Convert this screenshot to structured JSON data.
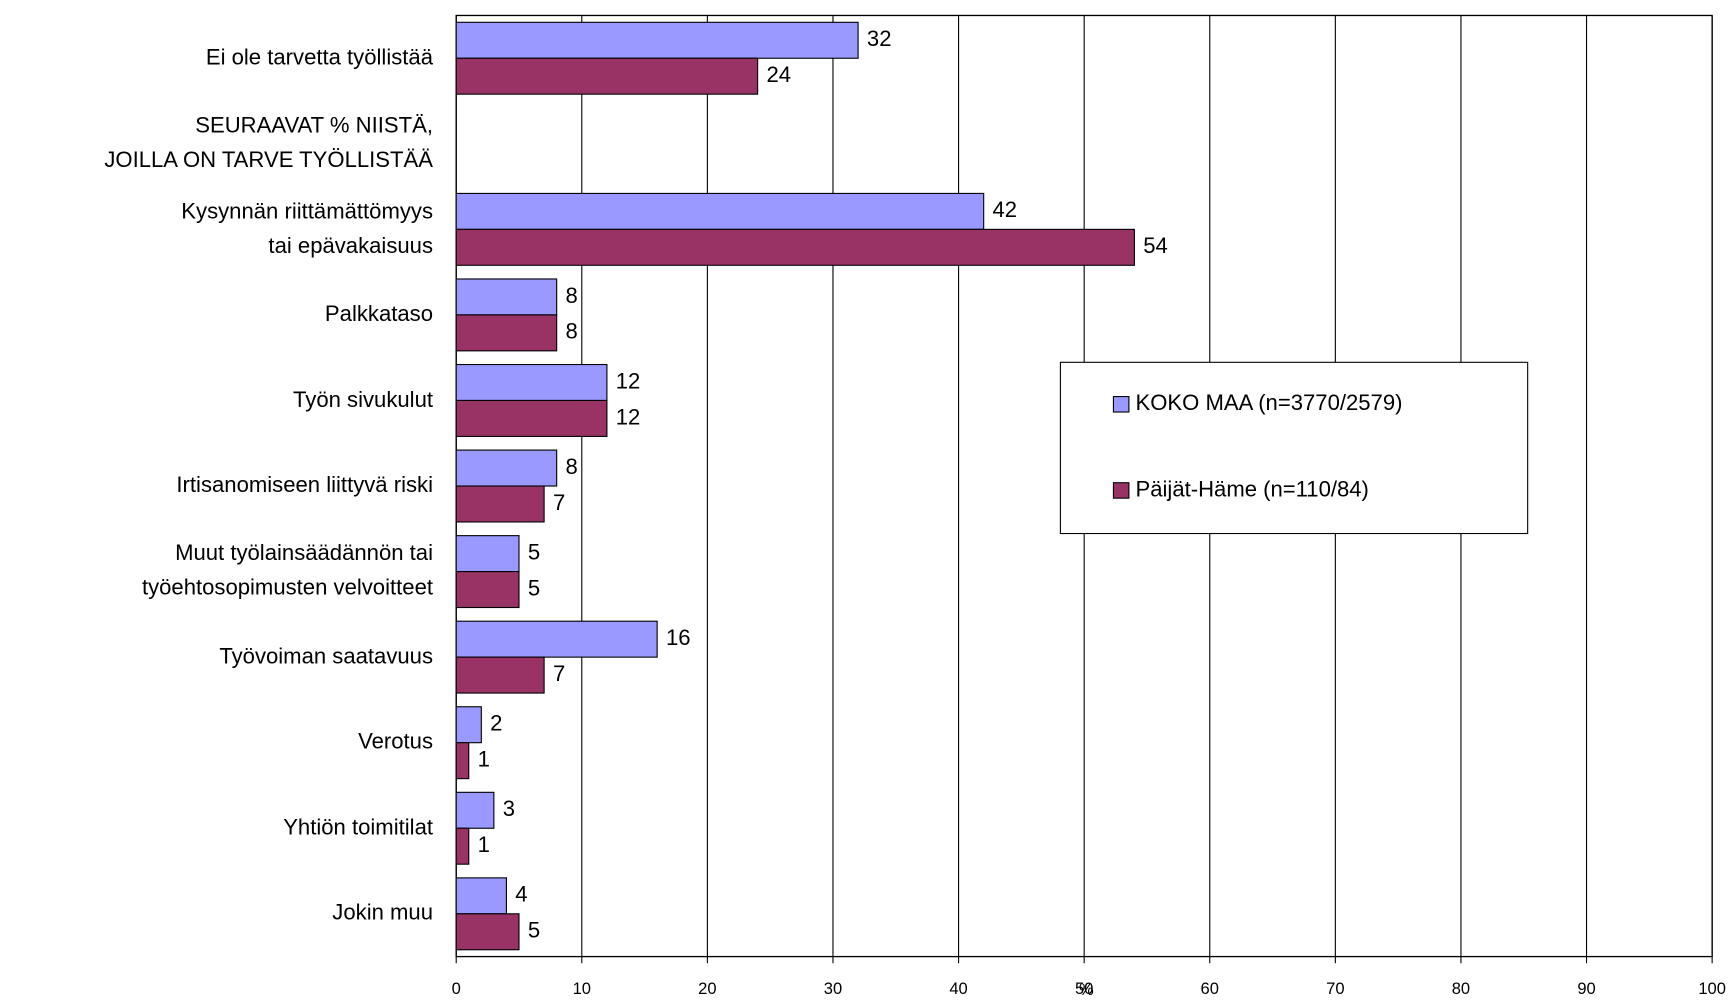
{
  "chart_data": {
    "type": "hbar",
    "categories": [
      "Ei ole tarvetta työllistää",
      "SEURAAVAT % NIISTÄ,\nJOILLA ON TARVE TYÖLLISTÄÄ",
      "Kysynnän riittämättömyys\ntai epävakaisuus",
      "Palkkataso",
      "Työn sivukulut",
      "Irtisanomiseen liittyvä riski",
      "Muut työlainsäädännön tai\ntyöehtosopimusten velvoitteet",
      "Työvoiman saatavuus",
      "Verotus",
      "Yhtiön toimitilat",
      "Jokin muu"
    ],
    "series": [
      {
        "name": "KOKO MAA (n=3770/2579)",
        "color": "#9999ff",
        "values": [
          32,
          null,
          42,
          8,
          12,
          8,
          5,
          16,
          2,
          3,
          4
        ]
      },
      {
        "name": "Päijät-Häme (n=110/84)",
        "color": "#993366",
        "values": [
          24,
          null,
          54,
          8,
          12,
          7,
          5,
          7,
          1,
          1,
          5
        ]
      }
    ],
    "xlabel": "%",
    "xlim": [
      0,
      100
    ],
    "xticks": [
      0,
      10,
      20,
      30,
      40,
      50,
      60,
      70,
      80,
      90,
      100
    ],
    "grid": true,
    "legend": "right"
  }
}
